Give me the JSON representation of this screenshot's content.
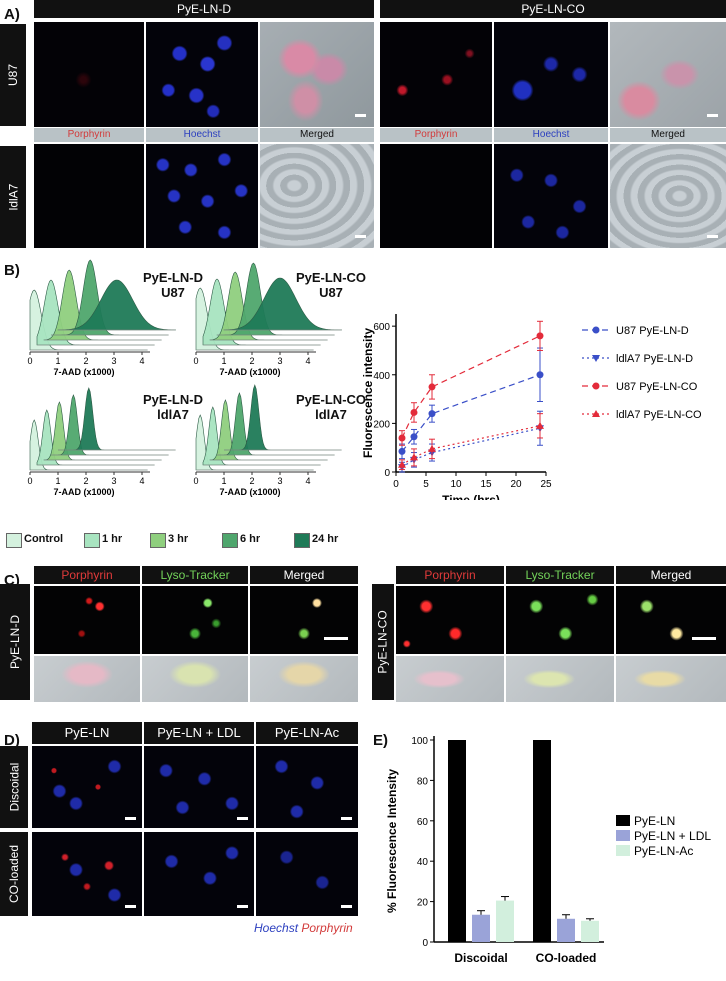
{
  "panelA": {
    "letter": "A)",
    "groups": [
      "PyE-LN-D",
      "PyE-LN-CO"
    ],
    "rows": [
      "U87",
      "ldlA7"
    ],
    "channels": [
      "Porphyrin",
      "Hoechst",
      "Merged"
    ]
  },
  "panelB": {
    "letter": "B)",
    "hist_titles": [
      [
        "PyE-LN-D",
        "U87"
      ],
      [
        "PyE-LN-CO",
        "U87"
      ],
      [
        "PyE-LN-D",
        "ldlA7"
      ],
      [
        "PyE-LN-CO",
        "ldlA7"
      ]
    ],
    "hist_axis_label": "7-AAD (x1000)",
    "hist_ticks": [
      "0",
      "1",
      "2",
      "3",
      "4"
    ],
    "legend": [
      {
        "label": "Control",
        "color": "#d4f1de"
      },
      {
        "label": "1 hr",
        "color": "#a8e4c0"
      },
      {
        "label": "3 hr",
        "color": "#8fcf7e"
      },
      {
        "label": "6 hr",
        "color": "#4fa66d"
      },
      {
        "label": "24 hr",
        "color": "#1f7a57"
      }
    ]
  },
  "chart_data": [
    {
      "type": "line",
      "xlabel": "Time (hrs)",
      "ylabel": "Fluorescence intensity",
      "xlim": [
        0,
        25
      ],
      "ylim": [
        0,
        650
      ],
      "xticks": [
        "0",
        "5",
        "10",
        "15",
        "20",
        "25"
      ],
      "yticks": [
        "0",
        "200",
        "400",
        "600"
      ],
      "x": [
        1,
        3,
        6,
        24
      ],
      "series": [
        {
          "name": "U87 PyE-LN-D",
          "color": "#3a4fc8",
          "marker": "circle",
          "dash": "6,4",
          "values": [
            85,
            145,
            240,
            400
          ],
          "errors": [
            30,
            30,
            35,
            110
          ]
        },
        {
          "name": "ldlA7 PyE-LN-D",
          "color": "#3a4fc8",
          "marker": "triangle-down",
          "dash": "2,3",
          "values": [
            20,
            50,
            80,
            180
          ],
          "errors": [
            20,
            30,
            35,
            70
          ]
        },
        {
          "name": "U87 PyE-LN-CO",
          "color": "#e32b3a",
          "marker": "circle",
          "dash": "6,4",
          "values": [
            140,
            245,
            350,
            560
          ],
          "errors": [
            30,
            40,
            50,
            60
          ]
        },
        {
          "name": "ldlA7 PyE-LN-CO",
          "color": "#e32b3a",
          "marker": "triangle-up",
          "dash": "2,3",
          "values": [
            30,
            60,
            95,
            190
          ],
          "errors": [
            20,
            35,
            40,
            50
          ]
        }
      ]
    },
    {
      "type": "bar",
      "xlabel": "",
      "ylabel": "% Fluorescence Intensity",
      "ylim": [
        0,
        100
      ],
      "yticks": [
        "0",
        "20",
        "40",
        "60",
        "80",
        "100"
      ],
      "categories": [
        "Discoidal",
        "CO-loaded"
      ],
      "series": [
        {
          "name": "PyE-LN",
          "color": "#000000",
          "values": [
            100,
            100
          ],
          "errors": [
            0,
            0
          ]
        },
        {
          "name": "PyE-LN + LDL",
          "color": "#9aa3d8",
          "values": [
            13.5,
            11.5
          ],
          "errors": [
            2,
            2
          ]
        },
        {
          "name": "PyE-LN-Ac",
          "color": "#d2efdd",
          "values": [
            20.5,
            10.5
          ],
          "errors": [
            2,
            1
          ]
        }
      ]
    }
  ],
  "panelC": {
    "letter": "C)",
    "channels": [
      "Porphyrin",
      "Lyso-Tracker",
      "Merged"
    ],
    "rows": [
      "PyE-LN-D",
      "PyE-LN-CO"
    ]
  },
  "panelD": {
    "letter": "D)",
    "cols": [
      "PyE-LN",
      "PyE-LN + LDL",
      "PyE-LN-Ac"
    ],
    "rows": [
      "Discoidal",
      "CO-loaded"
    ],
    "caption_hoechst": "Hoechst",
    "caption_porphyrin": "Porphyrin"
  },
  "panelE": {
    "letter": "E)"
  }
}
